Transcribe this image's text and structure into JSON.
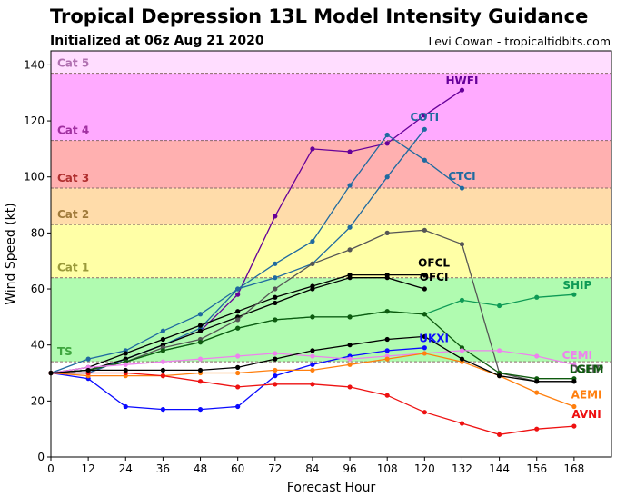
{
  "header": {
    "title": "Tropical Depression 13L Model Intensity Guidance",
    "subtitle": "Initialized at 06z Aug 21 2020",
    "credit": "Levi Cowan - tropicaltidbits.com"
  },
  "chart_data": {
    "type": "line",
    "title": "Tropical Depression 13L Model Intensity Guidance",
    "subtitle": "Initialized at 06z Aug 21 2020",
    "xlabel": "Forecast Hour",
    "ylabel": "Wind Speed (kt)",
    "xlim": [
      0,
      180
    ],
    "ylim": [
      0,
      145
    ],
    "xticks": [
      0,
      12,
      24,
      36,
      48,
      60,
      72,
      84,
      96,
      108,
      120,
      132,
      144,
      156,
      168
    ],
    "yticks": [
      0,
      20,
      40,
      60,
      80,
      100,
      120,
      140
    ],
    "grid": false,
    "bands": [
      {
        "label": "TS",
        "min": 34,
        "max": 64,
        "color": "#b0fbb0",
        "label_color": "#3fa63f"
      },
      {
        "label": "Cat 1",
        "min": 64,
        "max": 83,
        "color": "#ffffa6",
        "label_color": "#9a9a3a"
      },
      {
        "label": "Cat 2",
        "min": 83,
        "max": 96,
        "color": "#ffdcaa",
        "label_color": "#a07a3a"
      },
      {
        "label": "Cat 3",
        "min": 96,
        "max": 113,
        "color": "#ffb0b0",
        "label_color": "#b03030"
      },
      {
        "label": "Cat 4",
        "min": 113,
        "max": 137,
        "color": "#ffaaff",
        "label_color": "#a030a0"
      },
      {
        "label": "Cat 5",
        "min": 137,
        "max": 145,
        "color": "#ffddff",
        "label_color": "#b070b0"
      }
    ],
    "series": [
      {
        "name": "HWFI",
        "color": "#660099",
        "x": [
          0,
          12,
          24,
          36,
          48,
          60,
          72,
          84,
          96,
          108,
          120,
          132
        ],
        "y": [
          30,
          30,
          35,
          40,
          45,
          58,
          86,
          110,
          109,
          112,
          122,
          131
        ]
      },
      {
        "name": "COTI",
        "color": "#1f6aa0",
        "x": [
          0,
          12,
          24,
          36,
          48,
          60,
          72,
          84,
          96,
          108,
          120
        ],
        "y": [
          30,
          30,
          35,
          40,
          46,
          60,
          64,
          69,
          82,
          100,
          117
        ]
      },
      {
        "name": "CTCI",
        "color": "#1f6aa0",
        "x": [
          0,
          12,
          24,
          36,
          48,
          60,
          72,
          84,
          96,
          108,
          120,
          132
        ],
        "y": [
          30,
          35,
          38,
          45,
          51,
          60,
          69,
          77,
          97,
          115,
          106,
          96
        ]
      },
      {
        "name": "OFCL",
        "color": "#000000",
        "x": [
          0,
          12,
          24,
          36,
          48,
          60,
          72,
          84,
          96,
          108,
          120
        ],
        "y": [
          30,
          32,
          37,
          42,
          47,
          52,
          57,
          61,
          65,
          65,
          65
        ]
      },
      {
        "name": "OFCI",
        "color": "#000000",
        "x": [
          0,
          12,
          24,
          36,
          48,
          60,
          72,
          84,
          96,
          108,
          120
        ],
        "y": [
          30,
          31,
          35,
          40,
          45,
          50,
          55,
          60,
          64,
          64,
          60
        ]
      },
      {
        "name": "DSHP",
        "color": "#555555",
        "x": [
          0,
          12,
          24,
          36,
          48,
          60,
          72,
          84,
          96,
          108,
          120,
          132,
          144,
          156,
          168
        ],
        "y": [
          30,
          31,
          34,
          39,
          42,
          49,
          60,
          69,
          74,
          80,
          81,
          76,
          30,
          27,
          27
        ]
      },
      {
        "name": "SHIP",
        "color": "#0e9a55",
        "x": [
          0,
          12,
          24,
          36,
          48,
          60,
          72,
          84,
          96,
          108,
          120,
          132,
          144,
          156,
          168
        ],
        "y": [
          30,
          31,
          34,
          38,
          41,
          46,
          49,
          50,
          50,
          52,
          51,
          56,
          54,
          57,
          58
        ]
      },
      {
        "name": "LGEM",
        "color": "#0e5a0e",
        "x": [
          0,
          12,
          24,
          36,
          48,
          60,
          72,
          84,
          96,
          108,
          120,
          132,
          144,
          156,
          168
        ],
        "y": [
          30,
          31,
          34,
          38,
          41,
          46,
          49,
          50,
          50,
          52,
          51,
          39,
          30,
          28,
          28
        ]
      },
      {
        "name": "UKXI",
        "color": "#0a0aff",
        "x": [
          0,
          12,
          24,
          36,
          48,
          60,
          72,
          84,
          96,
          108,
          120
        ],
        "y": [
          30,
          28,
          18,
          17,
          17,
          18,
          29,
          33,
          36,
          38,
          39
        ]
      },
      {
        "name": "CEMI",
        "color": "#ee82ee",
        "x": [
          0,
          12,
          24,
          36,
          48,
          60,
          72,
          84,
          96,
          108,
          120,
          132,
          144,
          156,
          168
        ],
        "y": [
          30,
          32,
          33,
          34,
          35,
          36,
          37,
          36,
          35,
          36,
          37,
          38,
          38,
          36,
          33
        ]
      },
      {
        "name": "AEMI",
        "color": "#ff7f0e",
        "x": [
          0,
          12,
          24,
          36,
          48,
          60,
          72,
          84,
          96,
          108,
          120,
          132,
          144,
          156,
          168
        ],
        "y": [
          30,
          29,
          29,
          29,
          30,
          30,
          31,
          31,
          33,
          35,
          37,
          34,
          29,
          23,
          18
        ]
      },
      {
        "name": "AVNI",
        "color": "#ee1111",
        "x": [
          0,
          12,
          24,
          36,
          48,
          60,
          72,
          84,
          96,
          108,
          120,
          132,
          144,
          156,
          168
        ],
        "y": [
          30,
          30,
          30,
          29,
          27,
          25,
          26,
          26,
          25,
          22,
          16,
          12,
          8,
          10,
          11
        ]
      },
      {
        "name": "",
        "color": "#000000",
        "x": [
          0,
          12,
          24,
          36,
          48,
          60,
          72,
          84,
          96,
          108,
          120,
          132,
          144,
          156,
          168
        ],
        "y": [
          30,
          31,
          31,
          31,
          31,
          32,
          35,
          38,
          40,
          42,
          43,
          35,
          29,
          27,
          27
        ]
      }
    ],
    "labels": [
      {
        "text": "HWFI",
        "color": "#660099",
        "x": 132,
        "y": 133
      },
      {
        "text": "COTI",
        "color": "#1f6aa0",
        "x": 120,
        "y": 120
      },
      {
        "text": "CTCI",
        "color": "#1f6aa0",
        "x": 132,
        "y": 99
      },
      {
        "text": "OFCL",
        "color": "#000000",
        "x": 123,
        "y": 68
      },
      {
        "text": "OFCI",
        "color": "#000000",
        "x": 123,
        "y": 63
      },
      {
        "text": "SHIP",
        "color": "#0e9a55",
        "x": 169,
        "y": 60
      },
      {
        "text": "UKXI",
        "color": "#0a0aff",
        "x": 123,
        "y": 41
      },
      {
        "text": "CEMI",
        "color": "#ee82ee",
        "x": 169,
        "y": 35
      },
      {
        "text": "DSHP",
        "color": "#555555",
        "x": 172,
        "y": 30
      },
      {
        "text": "LGEM",
        "color": "#0e5a0e",
        "x": 172,
        "y": 30
      },
      {
        "text": "AEMI",
        "color": "#ff7f0e",
        "x": 172,
        "y": 21
      },
      {
        "text": "AVNI",
        "color": "#ee1111",
        "x": 172,
        "y": 14
      }
    ]
  }
}
